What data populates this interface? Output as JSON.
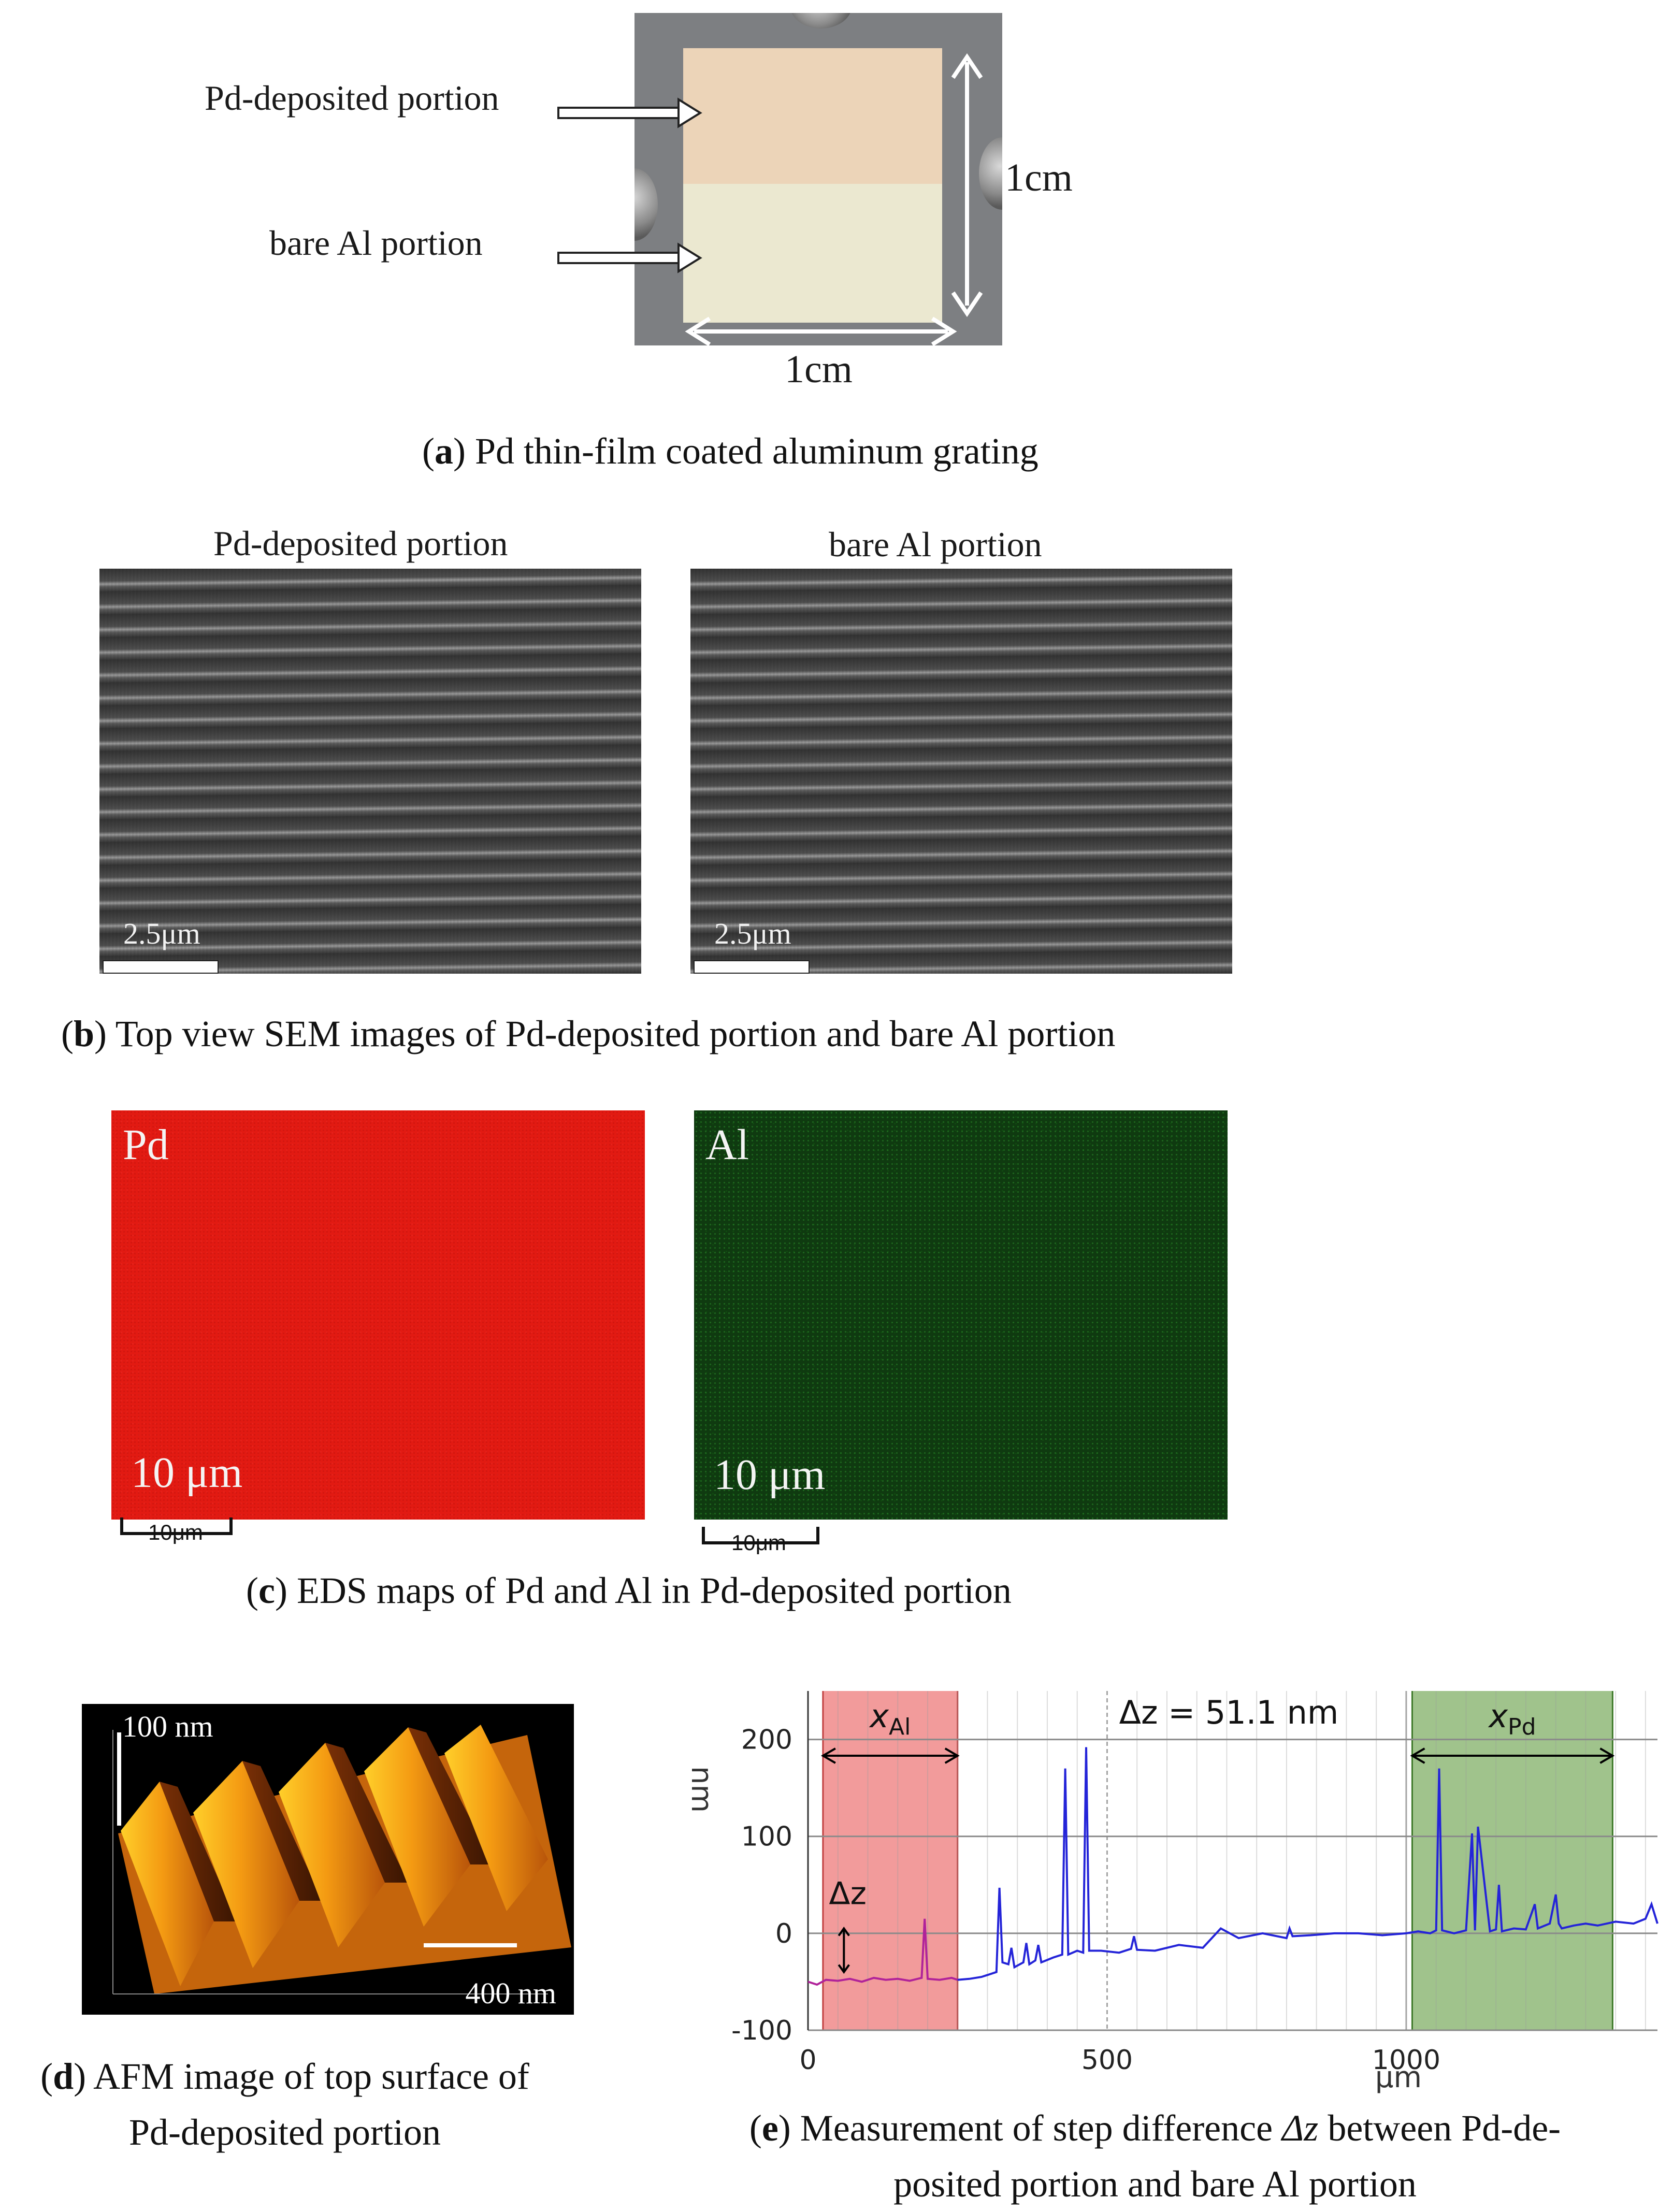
{
  "panel_a": {
    "label_pd": "Pd-deposited portion",
    "label_al": "bare Al portion",
    "dim_vertical": "1cm",
    "dim_horizontal": "1cm",
    "caption_letter": "a",
    "caption_text": "Pd thin-film coated aluminum grating"
  },
  "panel_b": {
    "title_left": "Pd-deposited portion",
    "title_right": "bare Al portion",
    "scale_left": "2.5μm",
    "scale_right": "2.5μm",
    "caption_letter": "b",
    "caption_text": "Top view SEM images of Pd-deposited portion and bare Al portion"
  },
  "panel_c": {
    "map_left_element": "Pd",
    "map_right_element": "Al",
    "map_left_scale": "10 μm",
    "map_right_scale": "10 μm",
    "bar_left_label": "10μm",
    "bar_right_label": "10μm",
    "colors": {
      "pd": "#e21a12",
      "al": "#0f3a10"
    },
    "caption_letter": "c",
    "caption_text": "EDS maps of Pd and Al in Pd-deposited portion"
  },
  "panel_d": {
    "height_label": "100 nm",
    "length_label": "400 nm",
    "caption_letter": "d",
    "caption_line1": "AFM image of top surface of",
    "caption_line2": "Pd-deposited portion"
  },
  "panel_e": {
    "caption_letter": "e",
    "caption_line1": "Measurement of step difference",
    "caption_symbol": "Δz",
    "caption_line1_end": "between Pd-de-",
    "caption_line2": "posited portion and bare Al portion"
  },
  "chart_data": {
    "type": "line",
    "title": "",
    "xlabel": "μm",
    "ylabel": "nm",
    "xlim": [
      0,
      1420
    ],
    "ylim": [
      -100,
      250
    ],
    "xticks": [
      0,
      500,
      1000
    ],
    "yticks": [
      -100,
      0,
      100,
      200
    ],
    "annotation_dz": "Δz = 51.1 nm",
    "annotation_x_al": "x",
    "annotation_x_al_sub": "Al",
    "annotation_x_pd": "x",
    "annotation_x_pd_sub": "Pd",
    "annotation_dz_small": "Δz",
    "regions": [
      {
        "name": "Al region",
        "x_start": 25,
        "x_end": 250,
        "color": "#f08a8a"
      },
      {
        "name": "Pd region",
        "x_start": 1010,
        "x_end": 1345,
        "color": "#8fb878"
      }
    ],
    "series": [
      {
        "name": "Al baseline",
        "color": "#b0229a",
        "x": [
          0,
          15,
          30,
          50,
          70,
          90,
          110,
          130,
          150,
          170,
          190,
          195,
          200,
          220,
          240,
          250
        ],
        "y": [
          -50,
          -53,
          -48,
          -49,
          -47,
          -50,
          -46,
          -48,
          -47,
          -49,
          -46,
          15,
          -47,
          -48,
          -46,
          -48
        ]
      },
      {
        "name": "profile",
        "color": "#2424d8",
        "x": [
          250,
          270,
          290,
          305,
          315,
          320,
          325,
          335,
          340,
          345,
          360,
          365,
          370,
          380,
          385,
          390,
          410,
          425,
          430,
          435,
          450,
          460,
          465,
          470,
          490,
          520,
          540,
          545,
          550,
          580,
          620,
          660,
          690,
          720,
          760,
          800,
          805,
          810,
          840,
          880,
          920,
          960,
          1000,
          1020,
          1040,
          1050,
          1055,
          1060,
          1080,
          1100,
          1110,
          1115,
          1120,
          1140,
          1150,
          1155,
          1160,
          1180,
          1200,
          1215,
          1220,
          1240,
          1250,
          1255,
          1260,
          1280,
          1300,
          1320,
          1350,
          1380,
          1400,
          1410,
          1420
        ],
        "y": [
          -48,
          -47,
          -45,
          -42,
          -40,
          47,
          -30,
          -32,
          -15,
          -35,
          -30,
          -10,
          -32,
          -28,
          -12,
          -30,
          -25,
          -22,
          170,
          -22,
          -18,
          -20,
          192,
          -18,
          -18,
          -20,
          -16,
          -3,
          -17,
          -18,
          -12,
          -15,
          5,
          -5,
          0,
          -5,
          5,
          -3,
          -2,
          0,
          0,
          -2,
          0,
          2,
          0,
          3,
          170,
          3,
          0,
          3,
          103,
          3,
          110,
          2,
          4,
          50,
          2,
          5,
          4,
          30,
          5,
          10,
          40,
          10,
          5,
          8,
          10,
          8,
          12,
          10,
          15,
          30,
          10
        ]
      }
    ]
  }
}
